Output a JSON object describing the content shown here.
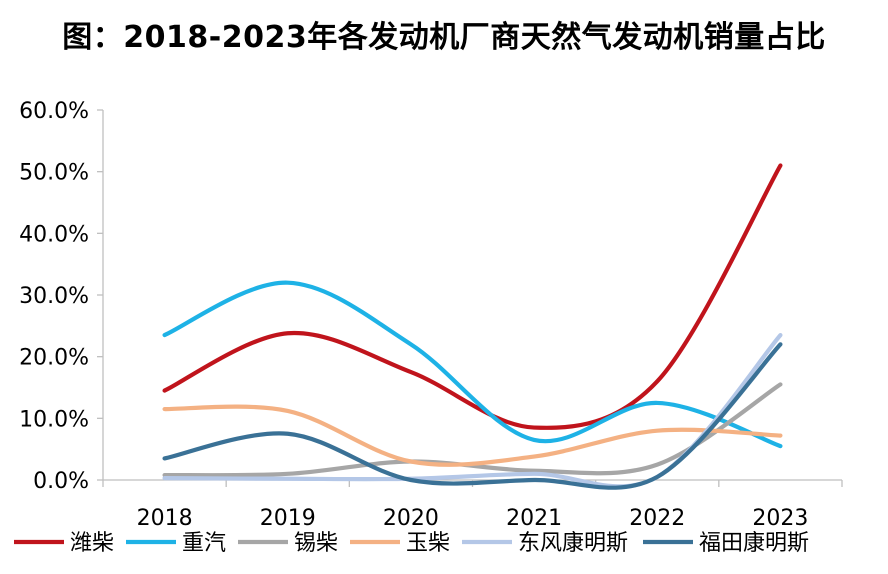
{
  "title": "图：2018-2023年各发动机厂商天然气发动机销量占比",
  "chart_data": {
    "type": "line",
    "title": "图：2018-2023年各发动机厂商天然气发动机销量占比",
    "x": [
      "2018",
      "2019",
      "2020",
      "2021",
      "2022",
      "2023"
    ],
    "ylim": [
      0,
      60
    ],
    "y_ticks": [
      "0.0%",
      "10.0%",
      "20.0%",
      "30.0%",
      "40.0%",
      "50.0%",
      "60.0%"
    ],
    "grid": false,
    "legend_position": "bottom",
    "series": [
      {
        "name": "潍柴",
        "color": "#C0141C",
        "values": [
          14.5,
          23.8,
          17.5,
          8.5,
          16.0,
          51.0
        ]
      },
      {
        "name": "重汽",
        "color": "#1EB2E6",
        "values": [
          23.5,
          32.0,
          22.0,
          6.5,
          12.5,
          5.5
        ]
      },
      {
        "name": "锡柴",
        "color": "#A6A6A6",
        "values": [
          0.8,
          1.0,
          3.0,
          1.5,
          2.5,
          15.5
        ]
      },
      {
        "name": "玉柴",
        "color": "#F4B183",
        "values": [
          11.5,
          11.2,
          3.0,
          3.8,
          8.0,
          7.2
        ]
      },
      {
        "name": "东风康明斯",
        "color": "#B4C7E7",
        "values": [
          0.3,
          0.2,
          0.2,
          1.0,
          0.5,
          23.5
        ]
      },
      {
        "name": "福田康明斯",
        "color": "#3A7196",
        "values": [
          3.5,
          7.5,
          0.0,
          0.0,
          0.5,
          22.0
        ]
      }
    ]
  }
}
